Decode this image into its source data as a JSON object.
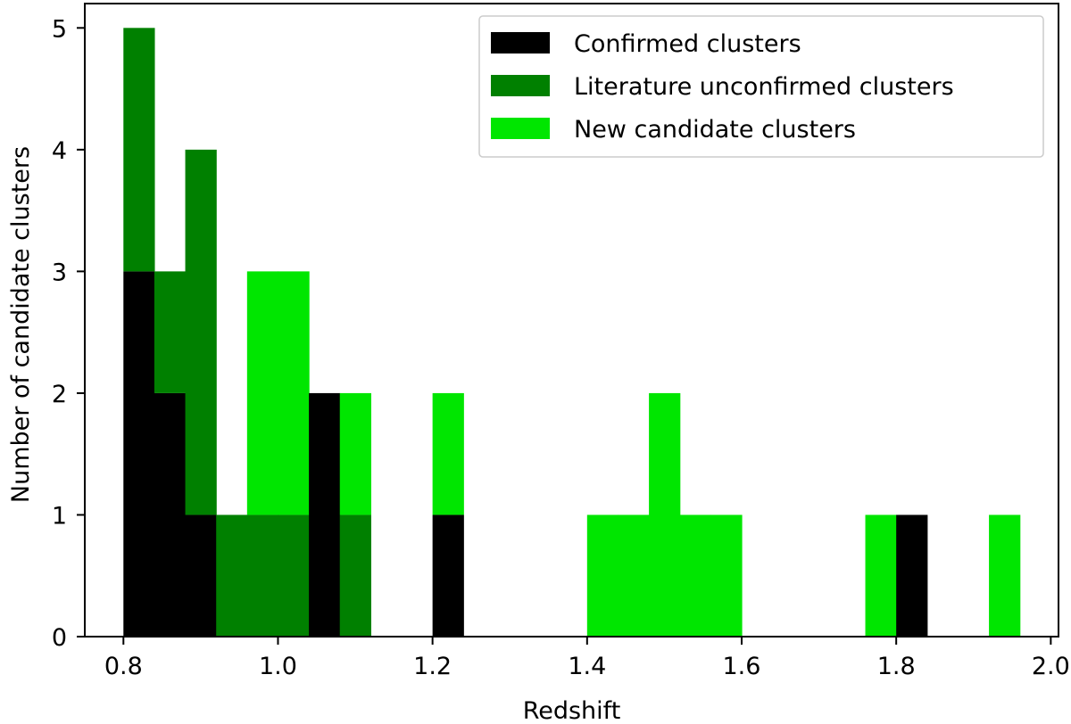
{
  "chart_data": {
    "type": "bar",
    "subtype": "stacked-histogram",
    "title": "",
    "xlabel": "Redshift",
    "ylabel": "Number of candidate clusters",
    "xlim": [
      0.75,
      2.01
    ],
    "ylim": [
      0,
      5.2
    ],
    "bin_width": 0.04,
    "x_ticks": [
      "0.8",
      "1.0",
      "1.2",
      "1.4",
      "1.6",
      "1.8",
      "2.0"
    ],
    "x_tick_values": [
      0.8,
      1.0,
      1.2,
      1.4,
      1.6,
      1.8,
      2.0
    ],
    "y_ticks": [
      "0",
      "1",
      "2",
      "3",
      "4",
      "5"
    ],
    "y_tick_values": [
      0,
      1,
      2,
      3,
      4,
      5
    ],
    "grid": false,
    "legend_position": "top-right",
    "bin_starts": [
      0.8,
      0.84,
      0.88,
      0.92,
      0.96,
      1.0,
      1.04,
      1.08,
      1.12,
      1.16,
      1.2,
      1.24,
      1.28,
      1.32,
      1.36,
      1.4,
      1.44,
      1.48,
      1.52,
      1.56,
      1.6,
      1.64,
      1.68,
      1.72,
      1.76,
      1.8,
      1.84,
      1.88,
      1.92
    ],
    "series": [
      {
        "name": "Confirmed clusters",
        "color": "#000000",
        "values": [
          3,
          2,
          1,
          0,
          0,
          0,
          2,
          0,
          0,
          0,
          1,
          0,
          0,
          0,
          0,
          0,
          0,
          0,
          0,
          0,
          0,
          0,
          0,
          0,
          0,
          1,
          0,
          0,
          0
        ]
      },
      {
        "name": "Literature unconfirmed clusters",
        "color": "#008000",
        "values": [
          2,
          1,
          3,
          1,
          1,
          1,
          0,
          1,
          0,
          0,
          0,
          0,
          0,
          0,
          0,
          0,
          0,
          0,
          0,
          0,
          0,
          0,
          0,
          0,
          0,
          0,
          0,
          0,
          0
        ]
      },
      {
        "name": "New candidate clusters",
        "color": "#00e600",
        "values": [
          0,
          0,
          0,
          0,
          2,
          2,
          0,
          1,
          0,
          0,
          1,
          0,
          0,
          0,
          0,
          1,
          1,
          2,
          1,
          1,
          0,
          0,
          0,
          0,
          1,
          0,
          0,
          0,
          1
        ]
      }
    ]
  }
}
